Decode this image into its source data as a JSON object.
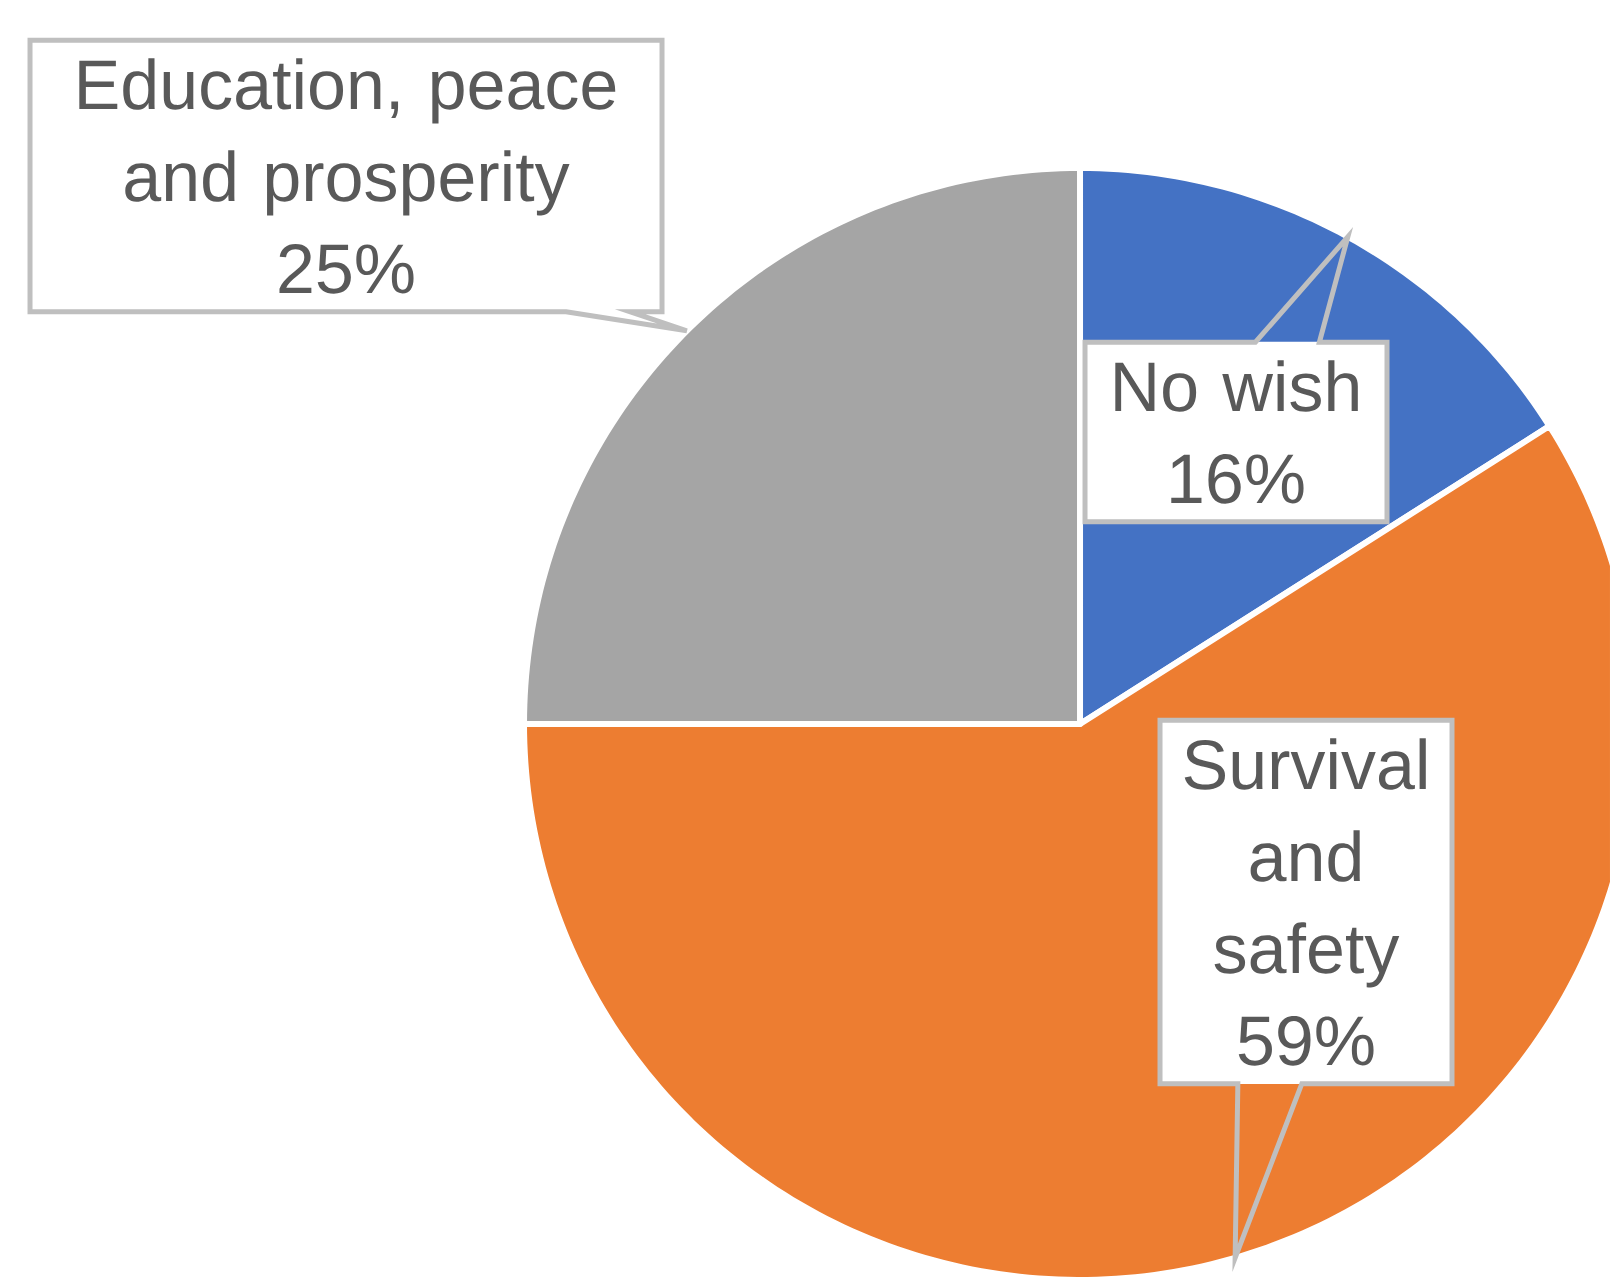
{
  "chart_data": {
    "type": "pie",
    "categories": [
      "No wish",
      "Survival and safety",
      "Education, peace and prosperity"
    ],
    "values": [
      16,
      59,
      25
    ],
    "value_labels": [
      "16%",
      "59%",
      "25%"
    ],
    "colors": [
      "#4472c4",
      "#ed7d31",
      "#a5a5a5"
    ]
  }
}
